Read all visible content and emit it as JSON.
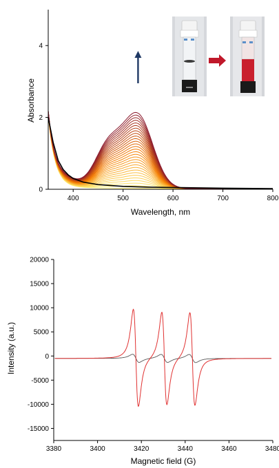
{
  "chart_data": [
    {
      "type": "line",
      "title": "",
      "xlabel": "Wavelength, nm",
      "ylabel": "Absorbance",
      "xlim": [
        350,
        800
      ],
      "ylim": [
        0,
        5
      ],
      "x_ticks": [
        400,
        500,
        600,
        700,
        800
      ],
      "y_ticks": [
        0,
        2,
        4
      ],
      "grid": false,
      "legend": "none",
      "baseline_series": {
        "color": "#000000",
        "points": [
          [
            350,
            2.0
          ],
          [
            360,
            1.3
          ],
          [
            370,
            0.8
          ],
          [
            380,
            0.55
          ],
          [
            390,
            0.4
          ],
          [
            400,
            0.3
          ],
          [
            420,
            0.2
          ],
          [
            450,
            0.13
          ],
          [
            500,
            0.08
          ],
          [
            550,
            0.06
          ],
          [
            600,
            0.05
          ],
          [
            700,
            0.03
          ],
          [
            800,
            0.02
          ]
        ]
      },
      "titration": {
        "curve_count": 30,
        "color_start": "#fff176",
        "color_mid": "#f57c00",
        "color_end": "#8b1a2e",
        "peak_wavelength": 530,
        "peak_absorbance_max": 2.12,
        "shoulder_wavelength": 470,
        "shoulder_absorbance_max": 1.75
      },
      "arrow": {
        "x": 530,
        "y_from": 2.95,
        "y_to": 3.85,
        "color": "#1f3864"
      },
      "inset": {
        "left_label": "",
        "right_label": ""
      }
    },
    {
      "type": "line",
      "title": "",
      "xlabel": "Magnetic field (G)",
      "ylabel": "Intensity (a.u.)",
      "xlim": [
        3380,
        3480
      ],
      "ylim": [
        -17500,
        20000
      ],
      "x_ticks": [
        3380,
        3400,
        3420,
        3440,
        3460,
        3480
      ],
      "y_ticks": [
        -15000,
        -10000,
        -5000,
        0,
        5000,
        10000,
        15000,
        20000
      ],
      "grid": false,
      "legend": "none",
      "series": [
        {
          "color": "#e03030",
          "lines": [
            {
              "center": 3417.5,
              "amplitude": 15500,
              "halfwidth": 2.0
            },
            {
              "center": 3430.5,
              "amplitude": 14800,
              "halfwidth": 2.0
            },
            {
              "center": 3443.3,
              "amplitude": 14800,
              "halfwidth": 2.0
            }
          ],
          "offset": -500
        },
        {
          "color": "#555555",
          "lines": [
            {
              "center": 3417.5,
              "amplitude": 1300,
              "halfwidth": 2.6
            },
            {
              "center": 3430.5,
              "amplitude": 1300,
              "halfwidth": 2.6
            },
            {
              "center": 3443.3,
              "amplitude": 1300,
              "halfwidth": 2.6
            }
          ],
          "offset": -500
        }
      ]
    }
  ]
}
